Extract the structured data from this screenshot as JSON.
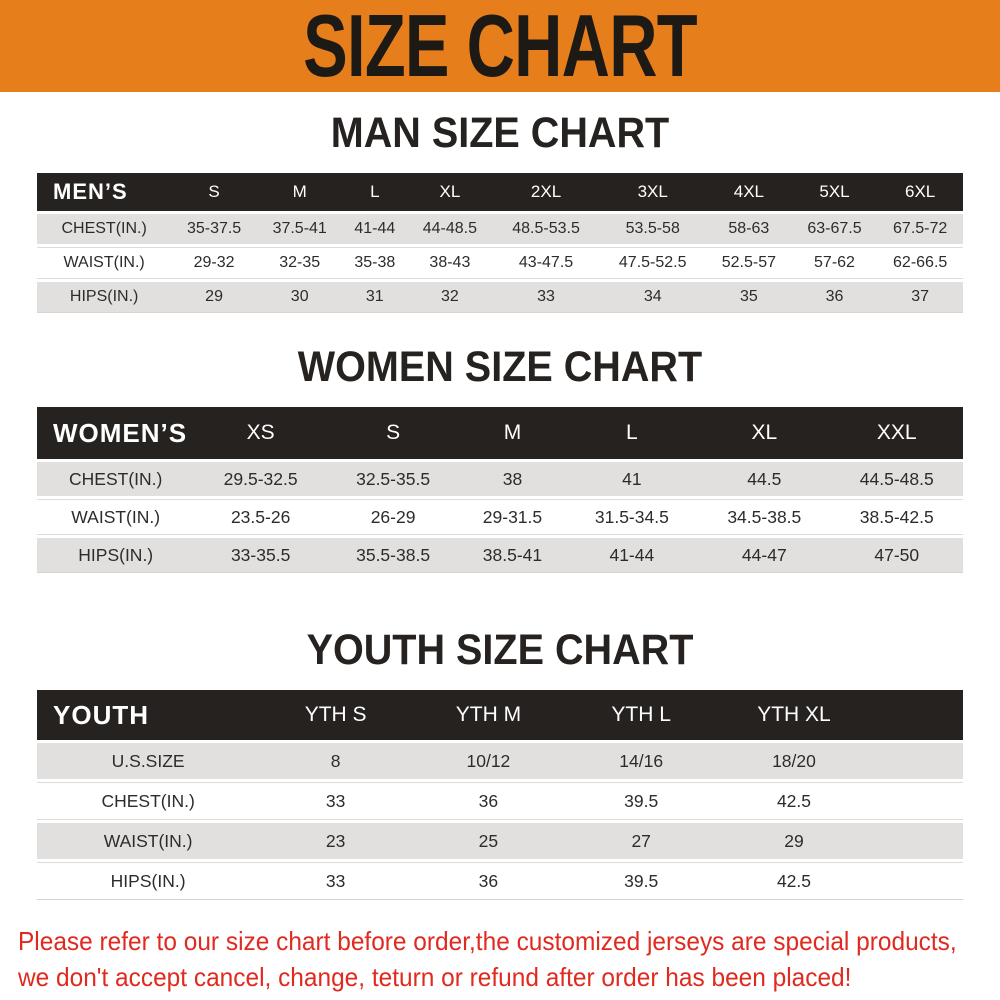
{
  "banner": {
    "title": "SIZE CHART"
  },
  "headings": {
    "men": "MAN SIZE CHART",
    "women": "WOMEN SIZE CHART",
    "youth": "YOUTH SIZE CHART"
  },
  "tables": {
    "men": {
      "label": "MEN’S",
      "columns": [
        "S",
        "M",
        "L",
        "XL",
        "2XL",
        "3XL",
        "4XL",
        "5XL",
        "6XL"
      ],
      "rows": [
        {
          "label": "CHEST(IN.)",
          "values": [
            "35-37.5",
            "37.5-41",
            "41-44",
            "44-48.5",
            "48.5-53.5",
            "53.5-58",
            "58-63",
            "63-67.5",
            "67.5-72"
          ]
        },
        {
          "label": "WAIST(IN.)",
          "values": [
            "29-32",
            "32-35",
            "35-38",
            "38-43",
            "43-47.5",
            "47.5-52.5",
            "52.5-57",
            "57-62",
            "62-66.5"
          ]
        },
        {
          "label": "HIPS(IN.)",
          "values": [
            "29",
            "30",
            "31",
            "32",
            "33",
            "34",
            "35",
            "36",
            "37"
          ]
        }
      ]
    },
    "women": {
      "label": "WOMEN’S",
      "columns": [
        "XS",
        "S",
        "M",
        "L",
        "XL",
        "XXL"
      ],
      "rows": [
        {
          "label": "CHEST(IN.)",
          "values": [
            "29.5-32.5",
            "32.5-35.5",
            "38",
            "41",
            "44.5",
            "44.5-48.5"
          ]
        },
        {
          "label": "WAIST(IN.)",
          "values": [
            "23.5-26",
            "26-29",
            "29-31.5",
            "31.5-34.5",
            "34.5-38.5",
            "38.5-42.5"
          ]
        },
        {
          "label": "HIPS(IN.)",
          "values": [
            "33-35.5",
            "35.5-38.5",
            "38.5-41",
            "41-44",
            "44-47",
            "47-50"
          ]
        }
      ]
    },
    "youth": {
      "label": "YOUTH",
      "columns": [
        "YTH S",
        "YTH M",
        "YTH L",
        "YTH XL"
      ],
      "rows": [
        {
          "label": "U.S.SIZE",
          "values": [
            "8",
            "10/12",
            "14/16",
            "18/20"
          ]
        },
        {
          "label": "CHEST(IN.)",
          "values": [
            "33",
            "36",
            "39.5",
            "42.5"
          ]
        },
        {
          "label": "WAIST(IN.)",
          "values": [
            "23",
            "25",
            "27",
            "29"
          ]
        },
        {
          "label": "HIPS(IN.)",
          "values": [
            "33",
            "36",
            "39.5",
            "42.5"
          ]
        }
      ]
    }
  },
  "footer": {
    "line1": "Please refer to our size chart before order,the customized jerseys are special products,",
    "line2": "we don't accept cancel, change, teturn or refund after order has been placed!"
  },
  "colors": {
    "banner_orange": "#E67E1C",
    "header_black": "#262220",
    "row_gray": "#E2E0DE",
    "note_red": "#E02A20"
  }
}
